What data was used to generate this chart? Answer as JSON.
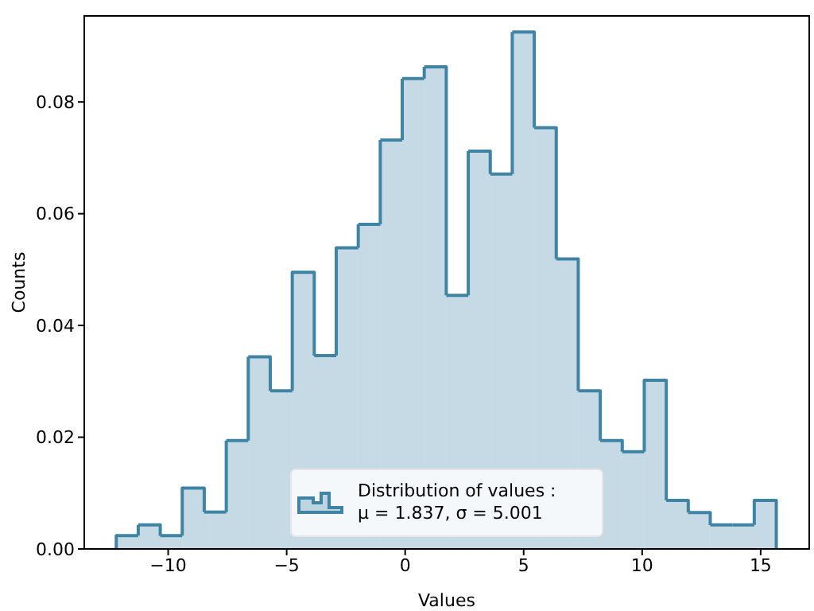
{
  "chart_data": {
    "type": "histogram",
    "xlabel": "Values",
    "ylabel": "Counts",
    "bins": [
      -12.19,
      -11.262,
      -10.333,
      -9.405,
      -8.477,
      -7.548,
      -6.62,
      -5.692,
      -4.764,
      -3.835,
      -2.907,
      -1.979,
      -1.05,
      -0.122,
      0.806,
      1.735,
      2.663,
      3.591,
      4.52,
      5.448,
      6.376,
      7.304,
      8.233,
      9.161,
      10.089,
      11.018,
      11.946,
      12.874,
      13.803,
      14.731,
      15.66
    ],
    "series": [
      {
        "name": "Distribution of values :\nμ = 1.837, σ = 5.001",
        "color": "#3f84a4",
        "values": [
          0.0024,
          0.0043,
          0.0024,
          0.0109,
          0.0066,
          0.0194,
          0.0344,
          0.0283,
          0.0495,
          0.0346,
          0.0539,
          0.0581,
          0.0732,
          0.0842,
          0.0863,
          0.0454,
          0.0712,
          0.0671,
          0.0925,
          0.0754,
          0.0519,
          0.0283,
          0.0194,
          0.0174,
          0.0302,
          0.0087,
          0.0065,
          0.0043,
          0.0043,
          0.0087
        ]
      }
    ],
    "xlim": [
      -13.54,
      17.05
    ],
    "ylim": [
      0,
      0.0954
    ],
    "xticks": [
      {
        "value": -10,
        "label": "−10"
      },
      {
        "value": -5,
        "label": "−5"
      },
      0,
      5,
      10,
      15
    ],
    "yticks": [
      {
        "value": 0,
        "label": "0.00"
      },
      0.02,
      0.04,
      0.06,
      0.08
    ],
    "grid": false,
    "legend": "bottom"
  }
}
